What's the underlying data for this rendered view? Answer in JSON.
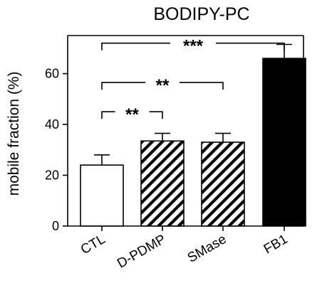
{
  "chart_data": {
    "type": "bar",
    "title": "BODIPY-PC",
    "xlabel": "",
    "ylabel": "mobile fraction (%)",
    "categories": [
      "CTL",
      "D-PDMP",
      "SMase",
      "FB1"
    ],
    "values": [
      24,
      33.5,
      33,
      66
    ],
    "errors": [
      4,
      3,
      3.5,
      5.5
    ],
    "fills": [
      "white",
      "hatched",
      "hatched",
      "black"
    ],
    "ylim": [
      0,
      75
    ],
    "yticks": [
      0,
      20,
      40,
      60
    ],
    "grid": false,
    "significance": [
      {
        "from": 0,
        "to": 1,
        "label": "**",
        "y": 45
      },
      {
        "from": 0,
        "to": 3,
        "label": "***",
        "y": 72
      },
      {
        "from": 0,
        "to": 2,
        "label": "**",
        "y": 56.5
      }
    ],
    "colors": {
      "bar_stroke": "#000000",
      "solid_fill": "#000000",
      "open_fill": "#ffffff"
    }
  }
}
